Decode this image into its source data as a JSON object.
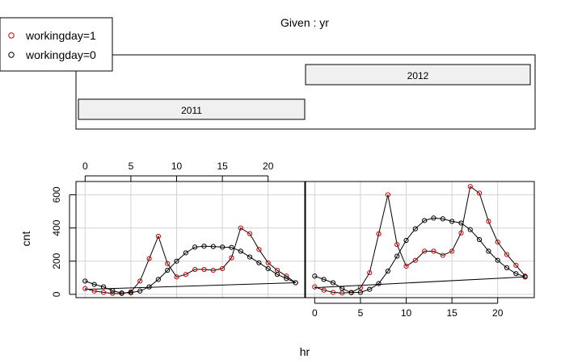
{
  "chart_data": {
    "type": "line",
    "title": "Given : yr",
    "xlabel": "hr",
    "ylabel": "cnt",
    "xlim": [
      -1,
      24
    ],
    "ylim": [
      -20,
      680
    ],
    "x_ticks": [
      0,
      5,
      10,
      15,
      20
    ],
    "y_ticks": [
      0,
      200,
      400,
      600
    ],
    "grid": true,
    "legend": {
      "placement": "top-left",
      "entries": [
        {
          "label": "workingday=1",
          "color": "#cc0000"
        },
        {
          "label": "workingday=0",
          "color": "#000000"
        }
      ]
    },
    "conditioning": {
      "variable": "yr",
      "levels": [
        {
          "label": "2011",
          "range": [
            0,
            0.5
          ]
        },
        {
          "label": "2012",
          "range": [
            0.5,
            1
          ]
        }
      ]
    },
    "panels": [
      {
        "given": "2011",
        "series": [
          {
            "name": "workingday=1",
            "color": "#cc0000",
            "x": [
              0,
              1,
              2,
              3,
              4,
              5,
              6,
              7,
              8,
              9,
              10,
              11,
              12,
              13,
              14,
              15,
              16,
              17,
              18,
              19,
              20,
              21,
              22,
              23
            ],
            "y": [
              35,
              20,
              12,
              6,
              5,
              15,
              80,
              215,
              350,
              185,
              105,
              120,
              150,
              150,
              145,
              155,
              220,
              400,
              365,
              270,
              190,
              145,
              110,
              70
            ]
          },
          {
            "name": "workingday=0",
            "color": "#000000",
            "x": [
              0,
              1,
              2,
              3,
              4,
              5,
              6,
              7,
              8,
              9,
              10,
              11,
              12,
              13,
              14,
              15,
              16,
              17,
              18,
              19,
              20,
              21,
              22,
              23
            ],
            "y": [
              80,
              60,
              45,
              22,
              8,
              10,
              20,
              45,
              90,
              145,
              200,
              250,
              285,
              290,
              288,
              285,
              283,
              260,
              225,
              190,
              155,
              120,
              95,
              70
            ]
          }
        ],
        "fit_line": {
          "x": [
            0,
            23
          ],
          "y": [
            30,
            70
          ]
        }
      },
      {
        "given": "2012",
        "series": [
          {
            "name": "workingday=1",
            "color": "#cc0000",
            "x": [
              0,
              1,
              2,
              3,
              4,
              5,
              6,
              7,
              8,
              9,
              10,
              11,
              12,
              13,
              14,
              15,
              16,
              17,
              18,
              19,
              20,
              21,
              22,
              23
            ],
            "y": [
              45,
              25,
              12,
              8,
              12,
              40,
              130,
              365,
              600,
              300,
              170,
              205,
              260,
              260,
              235,
              260,
              370,
              650,
              610,
              440,
              315,
              240,
              175,
              110
            ]
          },
          {
            "name": "workingday=0",
            "color": "#000000",
            "x": [
              0,
              1,
              2,
              3,
              4,
              5,
              6,
              7,
              8,
              9,
              10,
              11,
              12,
              13,
              14,
              15,
              16,
              17,
              18,
              19,
              20,
              21,
              22,
              23
            ],
            "y": [
              110,
              90,
              70,
              35,
              10,
              12,
              30,
              65,
              140,
              230,
              325,
              395,
              445,
              460,
              455,
              440,
              430,
              390,
              330,
              260,
              205,
              160,
              125,
              105
            ]
          }
        ],
        "fit_line": {
          "x": [
            0,
            23
          ],
          "y": [
            40,
            105
          ]
        }
      }
    ]
  }
}
